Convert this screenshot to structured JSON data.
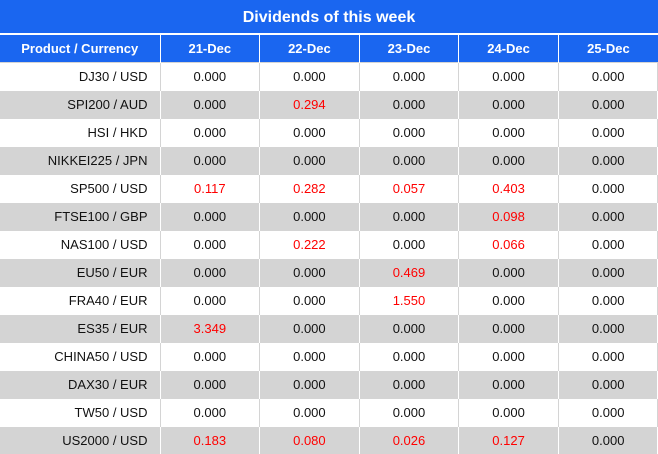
{
  "title": "Dividends of this week",
  "colors": {
    "header_bg": "#1a66f0",
    "stripe": "#d4d4d4",
    "positive": "#ff0000"
  },
  "columns": [
    "Product / Currency",
    "21-Dec",
    "22-Dec",
    "23-Dec",
    "24-Dec",
    "25-Dec"
  ],
  "rows": [
    {
      "product": "DJ30 / USD",
      "values": [
        "0.000",
        "0.000",
        "0.000",
        "0.000",
        "0.000"
      ]
    },
    {
      "product": "SPI200 / AUD",
      "values": [
        "0.000",
        "0.294",
        "0.000",
        "0.000",
        "0.000"
      ]
    },
    {
      "product": "HSI / HKD",
      "values": [
        "0.000",
        "0.000",
        "0.000",
        "0.000",
        "0.000"
      ]
    },
    {
      "product": "NIKKEI225 / JPN",
      "values": [
        "0.000",
        "0.000",
        "0.000",
        "0.000",
        "0.000"
      ]
    },
    {
      "product": "SP500 / USD",
      "values": [
        "0.117",
        "0.282",
        "0.057",
        "0.403",
        "0.000"
      ]
    },
    {
      "product": "FTSE100 / GBP",
      "values": [
        "0.000",
        "0.000",
        "0.000",
        "0.098",
        "0.000"
      ]
    },
    {
      "product": "NAS100 / USD",
      "values": [
        "0.000",
        "0.222",
        "0.000",
        "0.066",
        "0.000"
      ]
    },
    {
      "product": "EU50 / EUR",
      "values": [
        "0.000",
        "0.000",
        "0.469",
        "0.000",
        "0.000"
      ]
    },
    {
      "product": "FRA40 / EUR",
      "values": [
        "0.000",
        "0.000",
        "1.550",
        "0.000",
        "0.000"
      ]
    },
    {
      "product": "ES35 / EUR",
      "values": [
        "3.349",
        "0.000",
        "0.000",
        "0.000",
        "0.000"
      ]
    },
    {
      "product": "CHINA50 / USD",
      "values": [
        "0.000",
        "0.000",
        "0.000",
        "0.000",
        "0.000"
      ]
    },
    {
      "product": "DAX30 / EUR",
      "values": [
        "0.000",
        "0.000",
        "0.000",
        "0.000",
        "0.000"
      ]
    },
    {
      "product": "TW50 / USD",
      "values": [
        "0.000",
        "0.000",
        "0.000",
        "0.000",
        "0.000"
      ]
    },
    {
      "product": "US2000 / USD",
      "values": [
        "0.183",
        "0.080",
        "0.026",
        "0.127",
        "0.000"
      ]
    }
  ]
}
